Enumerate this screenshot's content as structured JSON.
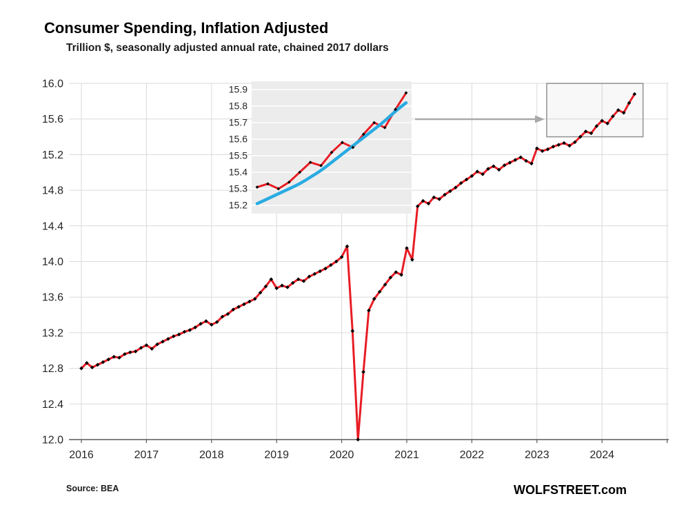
{
  "chart_data": {
    "type": "line",
    "title": "Consumer Spending, Inflation Adjusted",
    "subtitle": "Trillion $, seasonally adjusted annual rate, chained 2017 dollars",
    "unit": "Trillion $, chained 2017 dollars",
    "xlim": [
      2016,
      2025
    ],
    "ylim": [
      12.0,
      16.0
    ],
    "x_ticks": [
      2016,
      2017,
      2018,
      2019,
      2020,
      2021,
      2022,
      2023,
      2024
    ],
    "y_ticks": [
      12.0,
      12.4,
      12.8,
      13.2,
      13.6,
      14.0,
      14.4,
      14.8,
      15.2,
      15.6,
      16.0
    ],
    "grid": true,
    "series": [
      {
        "start": "2016-01",
        "freq": "monthly",
        "color": "#e81c24",
        "marker_color": "#000000",
        "values": [
          12.8,
          12.86,
          12.81,
          12.84,
          12.87,
          12.9,
          12.93,
          12.92,
          12.96,
          12.98,
          12.99,
          13.03,
          13.06,
          13.02,
          13.07,
          13.1,
          13.13,
          13.16,
          13.18,
          13.21,
          13.23,
          13.26,
          13.3,
          13.33,
          13.29,
          13.32,
          13.38,
          13.41,
          13.46,
          13.49,
          13.52,
          13.55,
          13.58,
          13.65,
          13.72,
          13.8,
          13.7,
          13.73,
          13.71,
          13.76,
          13.8,
          13.78,
          13.83,
          13.86,
          13.89,
          13.92,
          13.96,
          14.0,
          14.05,
          14.17,
          13.22,
          12.0,
          12.76,
          13.45,
          13.58,
          13.66,
          13.74,
          13.82,
          13.88,
          13.85,
          14.15,
          14.02,
          14.62,
          14.68,
          14.65,
          14.72,
          14.7,
          14.75,
          14.79,
          14.83,
          14.88,
          14.92,
          14.96,
          15.01,
          14.98,
          15.04,
          15.07,
          15.03,
          15.08,
          15.11,
          15.14,
          15.17,
          15.13,
          15.1,
          15.27,
          15.24,
          15.26,
          15.29,
          15.31,
          15.33,
          15.3,
          15.34,
          15.4,
          15.46,
          15.44,
          15.52,
          15.58,
          15.55,
          15.63,
          15.7,
          15.67,
          15.78,
          15.88
        ]
      }
    ],
    "inset": {
      "ylim": [
        15.15,
        15.95
      ],
      "y_ticks": [
        15.9,
        15.8,
        15.7,
        15.6,
        15.5,
        15.4,
        15.3,
        15.2
      ],
      "series": [
        {
          "color": "#e81c24",
          "marker_color": "#000000",
          "markers": true,
          "values": [
            15.31,
            15.33,
            15.3,
            15.34,
            15.4,
            15.46,
            15.44,
            15.52,
            15.58,
            15.55,
            15.63,
            15.7,
            15.67,
            15.78,
            15.88
          ]
        },
        {
          "color": "#29abe2",
          "markers": false,
          "values": [
            15.21,
            15.24,
            15.27,
            15.3,
            15.33,
            15.37,
            15.41,
            15.46,
            15.51,
            15.56,
            15.61,
            15.66,
            15.71,
            15.77,
            15.82
          ]
        }
      ]
    },
    "highlight_box": {
      "x0": 2023.15,
      "x1": 2024.63,
      "y0": 15.4,
      "y1": 16.0
    },
    "colors": {
      "grid": "#d9d9d9",
      "axis": "#595959",
      "inset_bg": "#ececec",
      "box_border": "#8f8f8f",
      "arrow": "#a8a8a8"
    }
  },
  "footer": {
    "source": "Source: BEA",
    "watermark": "WOLFSTREET.com"
  }
}
